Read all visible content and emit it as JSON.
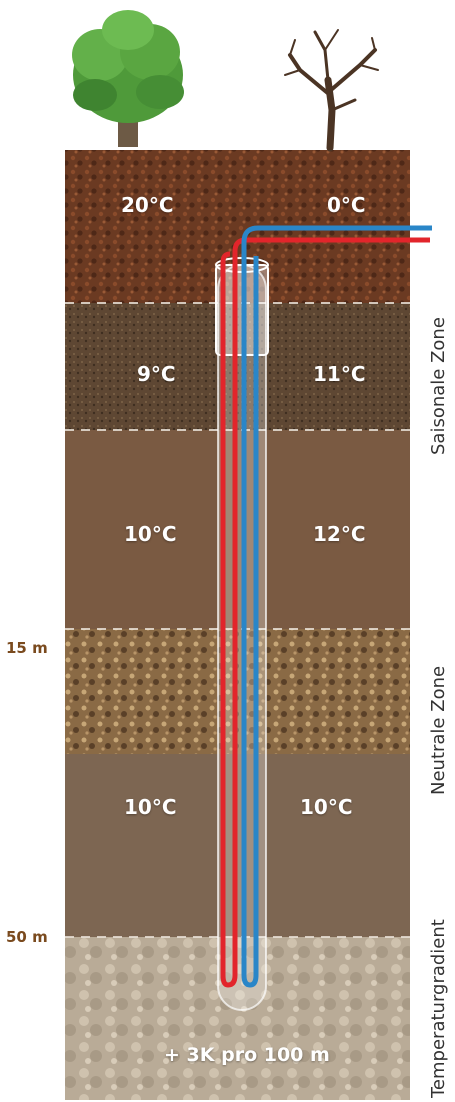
{
  "temperatures": {
    "row1": {
      "left": "20°C",
      "right": "0°C"
    },
    "row2": {
      "left": "9°C",
      "right": "11°C"
    },
    "row3": {
      "left": "10°C",
      "right": "12°C"
    },
    "row4": {
      "left": "10°C",
      "right": "10°C"
    }
  },
  "gradient_label": "+ 3K pro 100 m",
  "depth_markers": {
    "d1": "15 m",
    "d2": "50 m"
  },
  "zones": {
    "seasonal": "Saisonale Zone",
    "neutral": "Neutrale Zone",
    "gradient": "Temperaturgradient"
  },
  "colors": {
    "soil_top": "#6b3a22",
    "soil_2": "#5e4733",
    "soil_3": "#7a5a42",
    "soil_4": "#8a6a45",
    "soil_5": "#7d6652",
    "soil_bottom": "#b9ab97",
    "pipe_hot": "#e2252b",
    "pipe_cold": "#2a86c8",
    "depth_text": "#7a4a1e"
  },
  "icons": {
    "left": "leafy-tree-icon",
    "right": "bare-tree-icon"
  }
}
